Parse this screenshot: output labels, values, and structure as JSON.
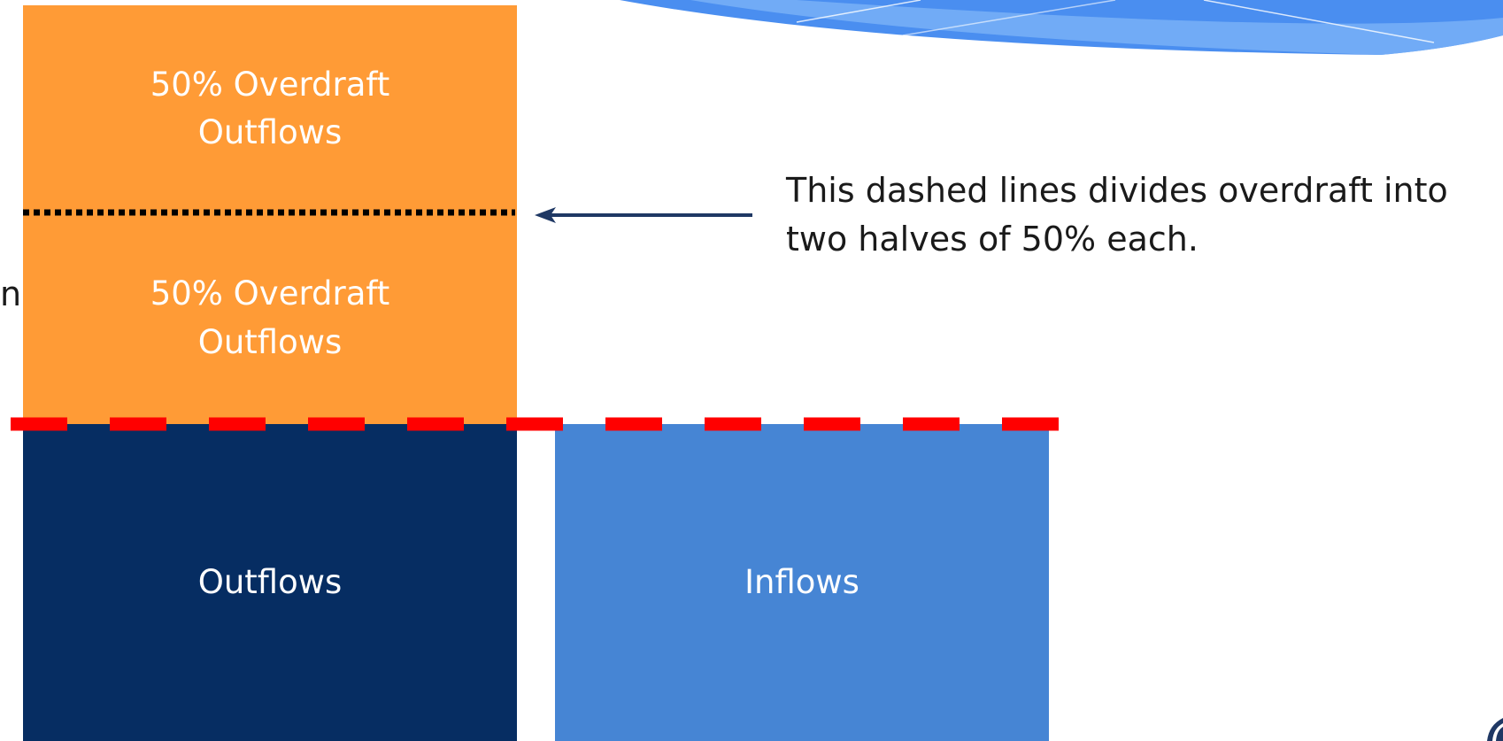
{
  "boxes": {
    "overdraft_top": {
      "line1": "50% Overdraft",
      "line2": "Outflows",
      "color": "#ff9b36"
    },
    "overdraft_bottom": {
      "line1": "50% Overdraft",
      "line2": "Outflows",
      "color": "#ff9b36"
    },
    "outflows": {
      "label": "Outflows",
      "color": "#062d62"
    },
    "inflows": {
      "label": "Inflows",
      "color": "#4685d4"
    }
  },
  "callout": {
    "line1": "This dashed lines divides overdraft into",
    "line2": "two halves of 50% each."
  },
  "left_edge_text": "n",
  "colors": {
    "threshold_line": "#ff0000",
    "divider_line": "#000000",
    "arrow": "#1f3864",
    "header_wave": "#4a8ef0"
  }
}
